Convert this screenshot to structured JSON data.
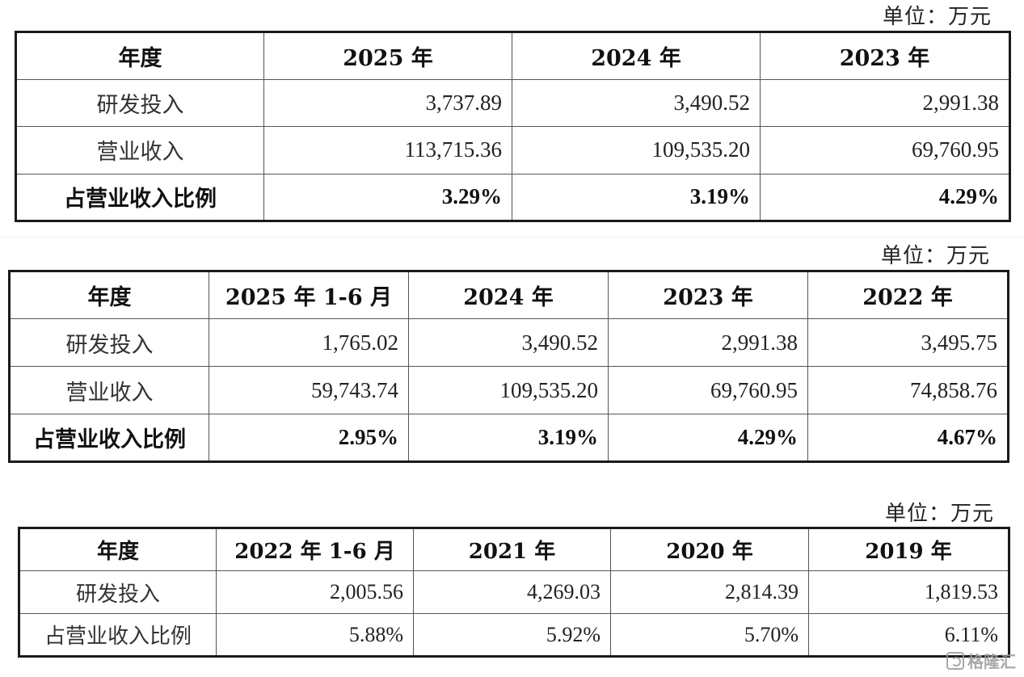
{
  "unit_label": "单位：万元",
  "tables": [
    {
      "headers": [
        "年度",
        "2025 年",
        "2024 年",
        "2023 年"
      ],
      "rows": [
        {
          "label": "研发投入",
          "values": [
            "3,737.89",
            "3,490.52",
            "2,991.38"
          ]
        },
        {
          "label": "营业收入",
          "values": [
            "113,715.36",
            "109,535.20",
            "69,760.95"
          ]
        },
        {
          "label": "占营业收入比例",
          "values": [
            "3.29%",
            "3.19%",
            "4.29%"
          ]
        }
      ]
    },
    {
      "headers": [
        "年度",
        "2025 年 1-6 月",
        "2024 年",
        "2023 年",
        "2022 年"
      ],
      "rows": [
        {
          "label": "研发投入",
          "values": [
            "1,765.02",
            "3,490.52",
            "2,991.38",
            "3,495.75"
          ]
        },
        {
          "label": "营业收入",
          "values": [
            "59,743.74",
            "109,535.20",
            "69,760.95",
            "74,858.76"
          ]
        },
        {
          "label": "占营业收入比例",
          "values": [
            "2.95%",
            "3.19%",
            "4.29%",
            "4.67%"
          ]
        }
      ]
    },
    {
      "headers": [
        "年度",
        "2022 年 1-6 月",
        "2021 年",
        "2020 年",
        "2019 年"
      ],
      "rows": [
        {
          "label": "研发投入",
          "values": [
            "2,005.56",
            "4,269.03",
            "2,814.39",
            "1,819.53"
          ]
        },
        {
          "label": "占营业收入比例",
          "values": [
            "5.88%",
            "5.92%",
            "5.70%",
            "6.11%"
          ]
        }
      ]
    }
  ],
  "watermark": {
    "text": "格隆汇",
    "icon": "gelonghui-logo-icon"
  }
}
